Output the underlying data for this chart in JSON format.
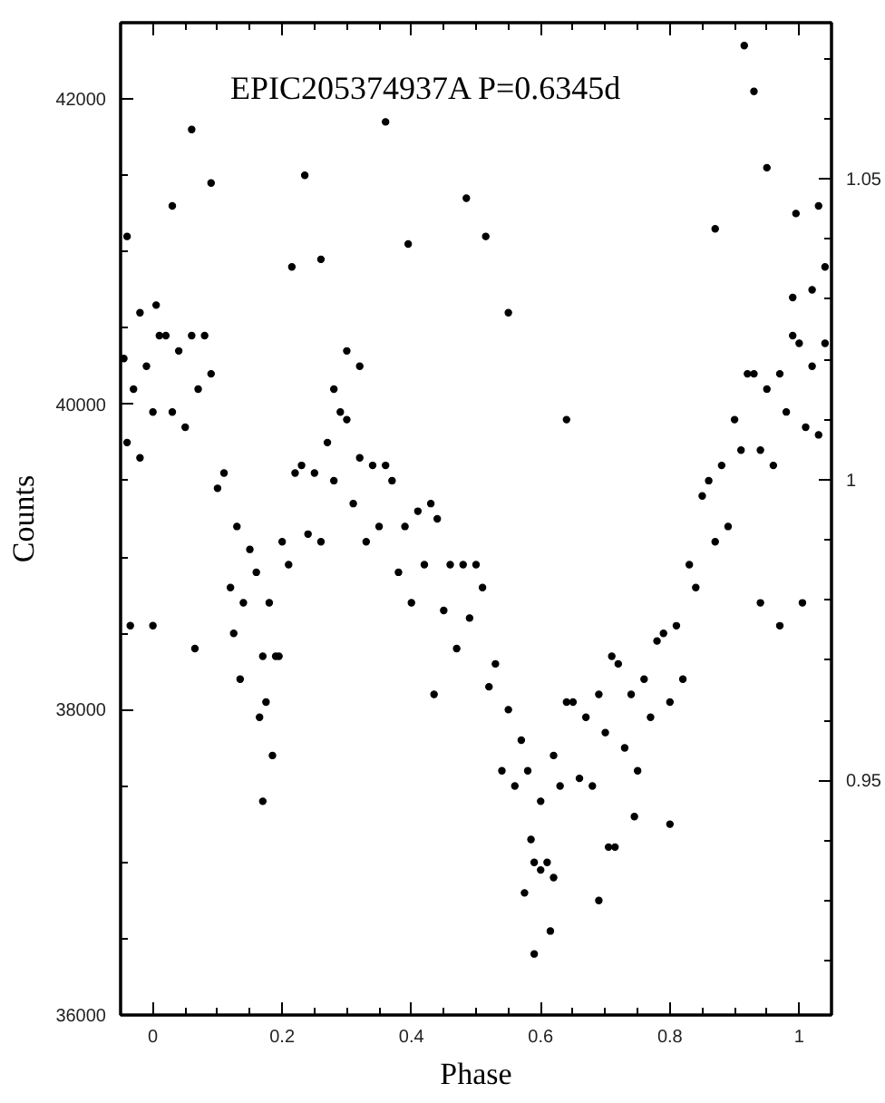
{
  "chart_data": {
    "type": "scatter",
    "title": "EPIC205374937A P=0.6345d",
    "xlabel": "Phase",
    "ylabel": "Counts",
    "color": "#000000",
    "marker": "circle",
    "x": [
      -0.045,
      -0.04,
      -0.03,
      -0.02,
      -0.01,
      0,
      0.01,
      0.02,
      0.03,
      0.04,
      0.05,
      0.06,
      0.07,
      0.08,
      0.09,
      0.1,
      0.11,
      0.12,
      0.13,
      0.14,
      0.15,
      0.16,
      0.17,
      0.18,
      0.19,
      0.2,
      0.21,
      0.22,
      0.23,
      0.24,
      0.25,
      0.26,
      0.27,
      0.28,
      0.29,
      0.3,
      0.31,
      0.32,
      0.33,
      0.34,
      0.35,
      0.36,
      0.37,
      0.38,
      0.39,
      0.4,
      0.41,
      0.42,
      0.43,
      0.44,
      0.45,
      0.46,
      0.47,
      0.48,
      0.49,
      0.5,
      0.51,
      0.52,
      0.53,
      0.54,
      0.55,
      0.56,
      0.57,
      0.58,
      0.59,
      0.6,
      0.61,
      0.62,
      0.63,
      0.64,
      0.65,
      0.66,
      0.67,
      0.68,
      0.69,
      0.7,
      0.71,
      0.72,
      0.73,
      0.74,
      0.75,
      0.76,
      0.77,
      0.78,
      0.79,
      0.8,
      0.81,
      0.82,
      0.83,
      0.84,
      0.85,
      0.86,
      0.87,
      0.88,
      0.89,
      0.9,
      0.91,
      0.92,
      0.93,
      0.94,
      0.95,
      0.96,
      0.97,
      0.98,
      0.99,
      1,
      1.01,
      1.02,
      1.03,
      1.04,
      0.165,
      0.175,
      0.185,
      0.17,
      0.135,
      0.195,
      0.125,
      0.59,
      0.615,
      0.575,
      0.62,
      0.6,
      0.585,
      0.715,
      0.8,
      0.745,
      0.69,
      0.705,
      0.06,
      0.915,
      0.93,
      -0.04,
      0.09,
      0.03,
      0.215,
      0.235,
      0.36,
      0.395,
      0.26,
      0.485,
      0.515,
      0.55,
      0.64,
      0.87,
      0.95,
      0.995,
      1.03,
      -0.035,
      0,
      0.065,
      0.435,
      0.97,
      1.005,
      0.94,
      0.32,
      0.3,
      0.28,
      1.02,
      1.04,
      0.99,
      0.005,
      -0.02
    ],
    "values": [
      40300,
      39750,
      40100,
      39650,
      40250,
      39950,
      40450,
      40450,
      39950,
      40350,
      39850,
      40450,
      40100,
      40450,
      40200,
      39450,
      39550,
      38800,
      39200,
      38700,
      39050,
      38900,
      38350,
      38700,
      38350,
      39100,
      38950,
      39550,
      39600,
      39150,
      39550,
      39100,
      39750,
      39500,
      39950,
      39900,
      39350,
      39650,
      39100,
      39600,
      39200,
      39600,
      39500,
      38900,
      39200,
      38700,
      39300,
      38950,
      39350,
      39250,
      38650,
      38950,
      38400,
      38950,
      38600,
      38950,
      38800,
      38150,
      38300,
      37600,
      38000,
      37500,
      37800,
      37600,
      37000,
      37400,
      37000,
      37700,
      37500,
      38050,
      38050,
      37550,
      37950,
      37500,
      38100,
      37850,
      38350,
      38300,
      37750,
      38100,
      37600,
      38200,
      37950,
      38450,
      38500,
      38050,
      38550,
      38200,
      38950,
      38800,
      39400,
      39500,
      39100,
      39600,
      39200,
      39900,
      39700,
      40200,
      40200,
      39700,
      40100,
      39600,
      40200,
      39950,
      40450,
      40400,
      39850,
      40250,
      39800,
      40400,
      37950,
      38050,
      37700,
      37400,
      38200,
      38350,
      38500,
      36400,
      36550,
      36800,
      36900,
      36950,
      37150,
      37100,
      37250,
      37300,
      36750,
      37100,
      41800,
      42350,
      42050,
      41100,
      41450,
      41300,
      40900,
      41500,
      41850,
      41050,
      40950,
      41350,
      41100,
      40600,
      39900,
      41150,
      41550,
      41250,
      41300,
      38550,
      38550,
      38400,
      38100,
      38550,
      38700,
      38700,
      40250,
      40350,
      40100,
      40750,
      40900,
      40700,
      40650,
      40600
    ],
    "xlim": [
      -0.05,
      1.05
    ],
    "ylim": [
      36000,
      42500
    ],
    "y2lim": [
      0.911,
      1.076
    ],
    "xticks": [
      0,
      {
        "value": 0.05,
        "label": null
      },
      {
        "value": 0.1,
        "label": null
      },
      {
        "value": 0.15,
        "label": null
      },
      0.2,
      {
        "value": 0.25,
        "label": null
      },
      {
        "value": 0.3,
        "label": null
      },
      {
        "value": 0.35,
        "label": null
      },
      0.4,
      {
        "value": 0.45,
        "label": null
      },
      {
        "value": 0.5,
        "label": null
      },
      {
        "value": 0.55,
        "label": null
      },
      0.6,
      {
        "value": 0.65,
        "label": null
      },
      {
        "value": 0.7,
        "label": null
      },
      {
        "value": 0.75,
        "label": null
      },
      0.8,
      {
        "value": 0.85,
        "label": null
      },
      {
        "value": 0.9,
        "label": null
      },
      {
        "value": 0.95,
        "label": null
      },
      1
    ],
    "yticks": [
      36000,
      {
        "value": 36500,
        "label": null
      },
      {
        "value": 37000,
        "label": null
      },
      {
        "value": 37500,
        "label": null
      },
      38000,
      {
        "value": 38500,
        "label": null
      },
      {
        "value": 39000,
        "label": null
      },
      {
        "value": 39500,
        "label": null
      },
      40000,
      {
        "value": 40500,
        "label": null
      },
      {
        "value": 41000,
        "label": null
      },
      {
        "value": 41500,
        "label": null
      },
      42000
    ],
    "y2ticks": [
      {
        "value": 0.92,
        "label": null
      },
      {
        "value": 0.93,
        "label": null
      },
      {
        "value": 0.94,
        "label": null
      },
      0.95,
      {
        "value": 0.96,
        "label": null
      },
      {
        "value": 0.97,
        "label": null
      },
      {
        "value": 0.98,
        "label": null
      },
      {
        "value": 0.99,
        "label": null
      },
      1,
      {
        "value": 1.01,
        "label": null
      },
      {
        "value": 1.02,
        "label": null
      },
      {
        "value": 1.03,
        "label": null
      },
      {
        "value": 1.04,
        "label": null
      },
      1.05,
      {
        "value": 1.06,
        "label": null
      },
      {
        "value": 1.07,
        "label": null
      }
    ]
  }
}
